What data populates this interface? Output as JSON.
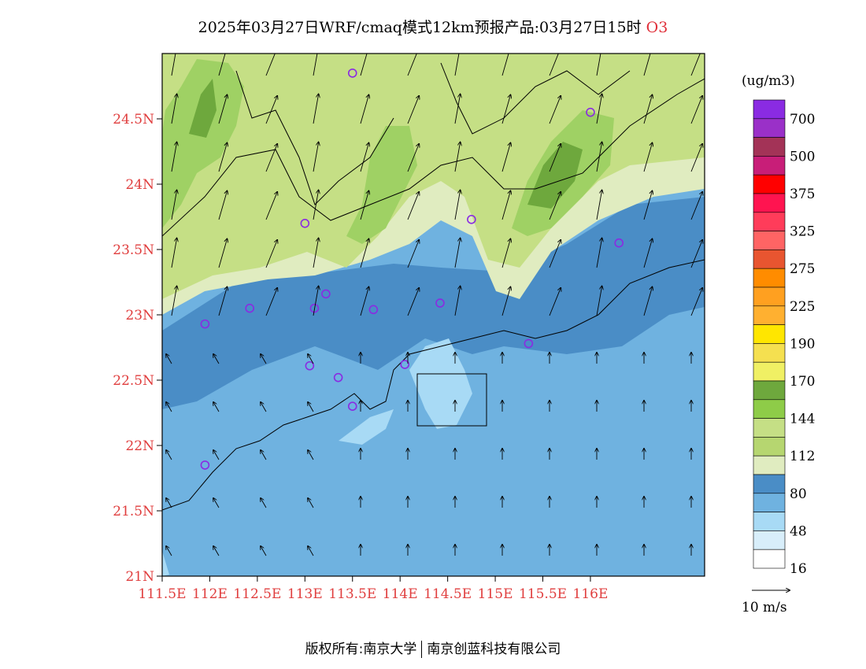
{
  "header": {
    "title": "2025年03月27日WRF/cmaq模式12km预报产品:03月27日15时",
    "species": "O3"
  },
  "colors": {
    "c16": "#ffffff",
    "c48": "#d8eefa",
    "c64": "#a8daf5",
    "c80": "#6fb2e0",
    "c96": "#4a8dc6",
    "c112": "#e0ecc0",
    "c128": "#c5df85",
    "c144": "#9fd164",
    "c170": "#6ea83d",
    "coast": "#000000",
    "label": "#e03e3e",
    "marker": "#8a2be2"
  },
  "axes": {
    "lat_ticks": [
      "21N",
      "21.5N",
      "22N",
      "22.5N",
      "23N",
      "23.5N",
      "24N",
      "24.5N"
    ],
    "lon_ticks": [
      "111.5E",
      "112E",
      "112.5E",
      "113E",
      "113.5E",
      "114E",
      "114.5E",
      "115E",
      "115.5E",
      "116E"
    ],
    "lat_values": [
      21,
      21.5,
      22,
      22.5,
      23,
      23.5,
      24,
      24.5
    ],
    "lon_values": [
      111.5,
      112,
      112.5,
      113,
      113.5,
      114,
      114.5,
      115,
      115.5,
      116
    ],
    "lon_range": [
      111.5,
      117.2
    ],
    "lat_range": [
      21,
      25
    ]
  },
  "colorbar": {
    "unit": "(ug/m3)",
    "labels": [
      "700",
      "500",
      "375",
      "325",
      "275",
      "225",
      "190",
      "170",
      "144",
      "112",
      "80",
      "48",
      "16"
    ],
    "swatches": [
      "#8a2be2",
      "#9a30c8",
      "#a33357",
      "#c81e78",
      "#ff0000",
      "#ff1450",
      "#ff3c5a",
      "#ff6464",
      "#e85530",
      "#ff8c00",
      "#ffa020",
      "#ffb030",
      "#ffe600",
      "#f5e050",
      "#f0f064",
      "#6ea83d",
      "#8ecc48",
      "#c5df85",
      "#b6d670",
      "#e0ecc0",
      "#4a8dc6",
      "#6fb2e0",
      "#a8daf5",
      "#d8eefa",
      "#ffffff"
    ]
  },
  "wind_legend": {
    "label": "10 m/s"
  },
  "stations": [
    {
      "lon": 113.5,
      "lat": 24.85
    },
    {
      "lon": 116.0,
      "lat": 24.55
    },
    {
      "lon": 113.0,
      "lat": 23.7
    },
    {
      "lon": 114.75,
      "lat": 23.73
    },
    {
      "lon": 116.3,
      "lat": 23.55
    },
    {
      "lon": 111.95,
      "lat": 22.93
    },
    {
      "lon": 112.42,
      "lat": 23.05
    },
    {
      "lon": 113.1,
      "lat": 23.05
    },
    {
      "lon": 113.22,
      "lat": 23.16
    },
    {
      "lon": 113.72,
      "lat": 23.04
    },
    {
      "lon": 114.42,
      "lat": 23.09
    },
    {
      "lon": 115.35,
      "lat": 22.78
    },
    {
      "lon": 113.05,
      "lat": 22.61
    },
    {
      "lon": 113.35,
      "lat": 22.52
    },
    {
      "lon": 114.05,
      "lat": 22.62
    },
    {
      "lon": 113.5,
      "lat": 22.3
    },
    {
      "lon": 111.95,
      "lat": 21.85
    }
  ],
  "footer": {
    "left": "版权所有:南京大学",
    "right": "南京创蓝科技有限公司"
  }
}
